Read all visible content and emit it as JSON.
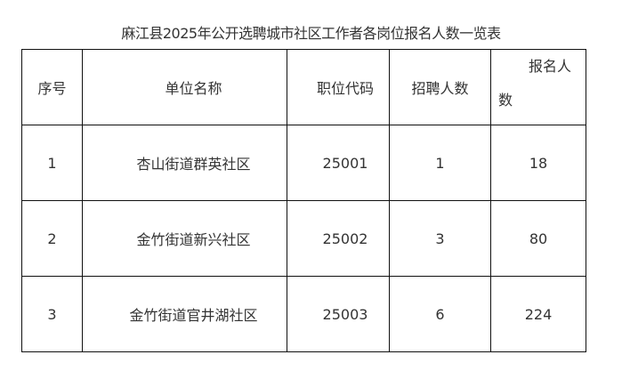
{
  "title": "麻江县2025年公开选聘城市社区工作者各岗位报名人数一览表",
  "headers": [
    "序号",
    "单位名称",
    "职位代码",
    "招聘人数",
    "报名人数"
  ],
  "rows": [
    [
      "1",
      "杏山街道群英社区",
      "25001",
      "1",
      "18"
    ],
    [
      "2",
      "金竹街道新兴社区",
      "25002",
      "3",
      "80"
    ],
    [
      "3",
      "金竹街道官井湖社区",
      "25003",
      "6",
      "224"
    ]
  ]
}
